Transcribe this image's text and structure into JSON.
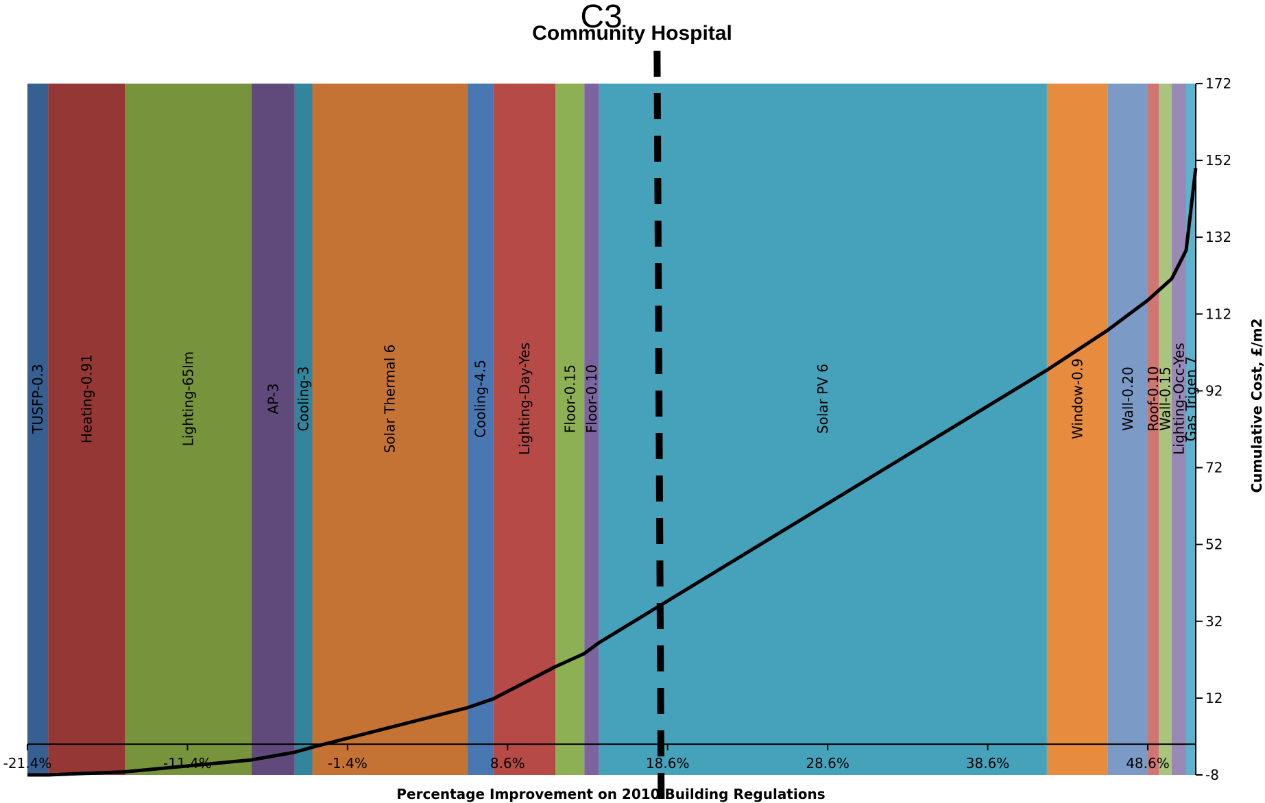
{
  "chart_data": {
    "type": "bar",
    "title": "Community Hospital",
    "marker_label": "C3",
    "marker_x": 18.2,
    "xlabel": "Percentage Improvement on 2010 Building  Regulations",
    "ylabel": "Cumulative Cost, £/m2",
    "xlim": [
      -21.4,
      51.6
    ],
    "ylim": [
      -8,
      172
    ],
    "x_ticks": [
      {
        "value": -21.4,
        "label": "-21.4%"
      },
      {
        "value": -11.4,
        "label": "-11.4%"
      },
      {
        "value": -1.4,
        "label": "-1.4%"
      },
      {
        "value": 8.6,
        "label": "8.6%"
      },
      {
        "value": 18.6,
        "label": "18.6%"
      },
      {
        "value": 28.6,
        "label": "28.6%"
      },
      {
        "value": 38.6,
        "label": "38.6%"
      },
      {
        "value": 48.6,
        "label": "48.6%"
      }
    ],
    "y_ticks": [
      -8,
      12,
      32,
      52,
      72,
      92,
      112,
      132,
      152,
      172
    ],
    "segments": [
      {
        "label": "TUSFP-0.3",
        "x0": -21.4,
        "x1": -20.1,
        "color": "#376092"
      },
      {
        "label": "Heating-0.91",
        "x0": -20.1,
        "x1": -15.3,
        "color": "#953735"
      },
      {
        "label": "Lighting-65lm",
        "x0": -15.3,
        "x1": -7.4,
        "color": "#77933C"
      },
      {
        "label": "AP-3",
        "x0": -7.4,
        "x1": -4.7,
        "color": "#604A7B"
      },
      {
        "label": "Cooling-3",
        "x0": -4.7,
        "x1": -3.6,
        "color": "#31859C"
      },
      {
        "label": "Solar Thermal 6",
        "x0": -3.6,
        "x1": 6.1,
        "color": "#C47335"
      },
      {
        "label": "Cooling-4.5",
        "x0": 6.1,
        "x1": 7.7,
        "color": "#4877B1"
      },
      {
        "label": "Lighting-Day-Yes",
        "x0": 7.7,
        "x1": 11.6,
        "color": "#B64A47"
      },
      {
        "label": "Floor-0.15",
        "x0": 11.6,
        "x1": 13.4,
        "color": "#8EB055"
      },
      {
        "label": "Floor-0.10",
        "x0": 13.4,
        "x1": 14.3,
        "color": "#7D64A0"
      },
      {
        "label": "Solar PV 6",
        "x0": 14.3,
        "x1": 42.3,
        "color": "#46A2BA"
      },
      {
        "label": "Window-0.9",
        "x0": 42.3,
        "x1": 46.1,
        "color": "#E78C3E"
      },
      {
        "label": "Wall-0.20",
        "x0": 46.1,
        "x1": 48.6,
        "color": "#7C9AC6"
      },
      {
        "label": "Roof-0.10",
        "x0": 48.6,
        "x1": 49.3,
        "color": "#CF7572"
      },
      {
        "label": "Wall-0.15",
        "x0": 49.3,
        "x1": 50.1,
        "color": "#A8C47E"
      },
      {
        "label": "Lighting-Occ-Yes",
        "x0": 50.1,
        "x1": 51.0,
        "color": "#9A88B6"
      },
      {
        "label": "Gas Trigen 7",
        "x0": 51.0,
        "x1": 51.6,
        "color": "#5DB3CC"
      }
    ],
    "series": [
      {
        "type": "line",
        "color": "#000000",
        "points": [
          [
            -21.4,
            -8
          ],
          [
            -20.1,
            -8
          ],
          [
            -15.3,
            -7.2
          ],
          [
            -7.4,
            -4.1
          ],
          [
            -4.7,
            -2.1
          ],
          [
            -3.6,
            -0.8
          ],
          [
            6.1,
            9.5
          ],
          [
            7.7,
            11.8
          ],
          [
            11.6,
            20.2
          ],
          [
            13.4,
            23.6
          ],
          [
            14.3,
            26.4
          ],
          [
            42.3,
            97.4
          ],
          [
            46.1,
            107.8
          ],
          [
            48.6,
            115.6
          ],
          [
            49.3,
            118.2
          ],
          [
            50.1,
            121.2
          ],
          [
            51.0,
            128.6
          ],
          [
            51.6,
            150
          ]
        ]
      }
    ]
  }
}
